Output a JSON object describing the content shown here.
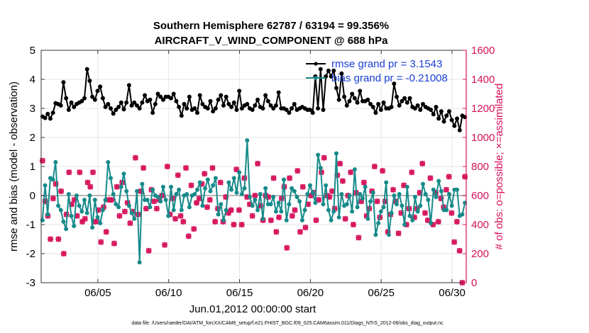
{
  "chart_data": {
    "type": "line",
    "title": "Southern Hemisphere 62787 / 63194 = 99.356%",
    "subtitle": "AIRCRAFT_V_WIND_COMPONENT @ 688 hPa",
    "xlabel": "Jun.01,2012 00:00:00 start",
    "ylabel": "rmse and bias (model - observation)",
    "ylabel_right": "# of obs: o=possible; ×=assimilated",
    "footnote": "data file: /Users/raeder/DAI/ATM_forcXX/CAM6_setup/f.e21.FHIST_BGC.f09_025.CAM6assim.011/Diags_NTrS_2012-06/obs_diag_output.nc",
    "xlim": [
      1,
      31
    ],
    "ylim": [
      -3,
      5
    ],
    "ylim_right": [
      0,
      1600
    ],
    "xticks": [
      5,
      10,
      15,
      20,
      25,
      30
    ],
    "xtick_labels": [
      "06/05",
      "06/10",
      "06/15",
      "06/20",
      "06/25",
      "06/30"
    ],
    "yticks": [
      -3,
      -2,
      -1,
      0,
      1,
      2,
      3,
      4,
      5
    ],
    "ytick_labels": [
      "-3",
      "-2",
      "-1",
      "0",
      "1",
      "2",
      "3",
      "4",
      "5"
    ],
    "yticks_right": [
      0,
      200,
      400,
      600,
      800,
      1000,
      1200,
      1400,
      1600
    ],
    "ytick_labels_right": [
      "0",
      "200",
      "400",
      "600",
      "800",
      "1000",
      "1200",
      "1400",
      "1600"
    ],
    "grid": true,
    "legend_position": "top-right",
    "series": [
      {
        "name": "rmse",
        "legend": "rmse grand pr = 3.1543",
        "color": "#000000",
        "values": [
          2.72,
          2.67,
          2.81,
          2.65,
          2.85,
          3.18,
          3.15,
          3.1,
          3.9,
          3.35,
          2.95,
          3.2,
          3.05,
          3.15,
          3.2,
          3.25,
          3.35,
          4.35,
          3.95,
          3.4,
          3.3,
          3.6,
          3.75,
          3.35,
          3.05,
          3.15,
          3.0,
          2.82,
          2.95,
          3.05,
          3.2,
          2.97,
          3.2,
          3.8,
          3.1,
          3.2,
          3.1,
          3.0,
          3.2,
          3.45,
          3.25,
          3.3,
          2.85,
          3.15,
          3.5,
          3.4,
          3.3,
          3.4,
          3.4,
          3.35,
          3.5,
          3.25,
          3.05,
          2.75,
          3.15,
          3.0,
          3.4,
          2.95,
          3.0,
          2.85,
          3.45,
          3.15,
          3.05,
          3.0,
          3.25,
          2.9,
          3.0,
          3.3,
          3.45,
          3.1,
          3.4,
          3.15,
          3.05,
          3.2,
          2.95,
          3.6,
          3.0,
          3.1,
          3.15,
          3.0,
          2.95,
          3.1,
          3.3,
          3.05,
          3.0,
          3.45,
          3.25,
          3.1,
          3.0,
          3.1,
          3.55,
          3.0,
          3.0,
          2.95,
          2.85,
          3.0,
          3.15,
          2.95,
          3.0,
          3.05,
          3.0,
          2.95,
          2.95,
          2.85,
          4.1,
          3.0,
          4.35,
          2.95,
          4.1,
          4.3,
          4.1,
          4.3,
          3.7,
          3.3,
          4.2,
          3.4,
          3.1,
          3.25,
          3.5,
          3.35,
          3.2,
          3.6,
          3.25,
          3.25,
          3.3,
          3.15,
          3.05,
          2.85,
          3.15,
          2.95,
          3.2,
          3.0,
          3.0,
          3.05,
          3.85,
          3.4,
          3.1,
          3.25,
          3.35,
          3.2,
          3.35,
          3.05,
          3.0,
          3.1,
          2.95,
          3.15,
          3.05,
          3.0,
          2.95,
          2.8,
          3.05,
          2.65,
          2.9,
          2.55,
          2.75,
          2.9,
          2.6,
          2.4,
          2.65,
          2.25,
          2.75,
          2.7
        ]
      },
      {
        "name": "bias",
        "legend": "bias grand pr = -0.21008",
        "color": "#178a8a",
        "values": [
          -0.85,
          0.35,
          -0.65,
          0.6,
          0.55,
          1.15,
          -0.35,
          -0.5,
          -0.9,
          -1.15,
          0.05,
          -0.7,
          -1.05,
          0.0,
          -0.35,
          -0.55,
          -0.15,
          -0.6,
          0.0,
          -1.1,
          -0.15,
          -0.75,
          -0.95,
          -0.5,
          -0.15,
          1.15,
          0.6,
          0.05,
          -0.3,
          -0.4,
          0.3,
          0.75,
          0.15,
          -0.35,
          -0.6,
          -0.8,
          0.15,
          -2.3,
          0.4,
          -0.15,
          -0.15,
          -0.4,
          0.2,
          0.0,
          -0.05,
          -0.2,
          0.3,
          -0.15,
          -0.7,
          0.3,
          -0.5,
          0.05,
          0.2,
          -0.5,
          0.0,
          0.05,
          -0.4,
          0.0,
          0.05,
          0.2,
          0.45,
          -0.35,
          0.25,
          0.55,
          0.15,
          0.35,
          0.6,
          -0.65,
          -0.3,
          -0.85,
          -0.5,
          0.45,
          0.2,
          0.6,
          0.1,
          0.8,
          0.05,
          0.25,
          1.9,
          -0.05,
          -0.35,
          -0.15,
          -0.5,
          0.05,
          -0.8,
          0.25,
          -0.3,
          -0.3,
          -0.05,
          -0.55,
          -0.25,
          -0.55,
          0.55,
          -0.85,
          -0.3,
          0.25,
          0.15,
          -0.05,
          -0.2,
          -0.85,
          -0.5,
          0.05,
          0.35,
          0.1,
          -0.25,
          1.4,
          0.95,
          -0.3,
          0.35,
          -0.5,
          -0.85,
          -0.55,
          1.45,
          -0.75,
          0.05,
          -0.35,
          -0.3,
          0.0,
          -0.55,
          0.9,
          -0.4,
          0.05,
          -0.1,
          0.3,
          -0.8,
          -0.2,
          0.1,
          -1.35,
          -0.95,
          -0.55,
          -0.4,
          0.45,
          -1.35,
          -0.6,
          0.0,
          -0.3,
          0.05,
          -0.35,
          -1.0,
          0.3,
          -0.7,
          -0.85,
          -0.05,
          -0.55,
          -0.35,
          0.4,
          0.05,
          -0.15,
          -0.95,
          0.2,
          -0.05,
          0.5,
          0.15,
          -0.5,
          -0.5,
          0.05,
          -0.35,
          0.2,
          0.2,
          -0.7,
          -0.65,
          -0.25
        ]
      },
      {
        "name": "obs_possible",
        "marker": "o",
        "color": "#d6115a",
        "values": [
          840,
          560,
          460,
          300,
          580,
          680,
          300,
          630,
          200,
          470,
          760,
          540,
          570,
          460,
          760,
          420,
          440,
          690,
          660,
          760,
          420,
          500,
          280,
          520,
          350,
          570,
          570,
          270,
          660,
          460,
          690,
          490,
          550,
          410,
          490,
          860,
          470,
          630,
          790,
          510,
          220,
          640,
          560,
          510,
          570,
          600,
          260,
          800,
          470,
          580,
          440,
          740,
          460,
          420,
          790,
          320,
          670,
          370,
          550,
          580,
          680,
          750,
          520,
          570,
          790,
          420,
          510,
          690,
          420,
          590,
          480,
          500,
          400,
          780,
          500,
          400,
          720,
          590,
          540,
          460,
          600,
          820,
          530,
          430,
          600,
          590,
          430,
          720,
          350,
          450,
          580,
          660,
          240,
          720,
          460,
          500,
          770,
          350,
          660,
          380,
          540,
          600,
          620,
          430,
          570,
          760,
          860,
          600,
          590,
          630,
          510,
          740,
          820,
          700,
          440,
          600,
          760,
          400,
          620,
          310,
          560,
          690,
          460,
          510,
          630,
          800,
          560,
          450,
          770,
          560,
          350,
          470,
          640,
          560,
          340,
          480,
          670,
          400,
          510,
          760,
          450,
          510,
          620,
          820,
          480,
          430,
          720,
          400,
          620,
          420,
          580,
          520,
          640,
          730,
          480,
          280,
          420,
          220,
          0,
          730
        ]
      },
      {
        "name": "obs_assimilated",
        "marker": "x",
        "color": "#d6115a",
        "values": [
          840,
          560,
          460,
          300,
          580,
          680,
          300,
          630,
          200,
          470,
          760,
          540,
          570,
          460,
          760,
          420,
          440,
          690,
          660,
          760,
          420,
          500,
          280,
          520,
          350,
          570,
          570,
          270,
          660,
          460,
          690,
          490,
          550,
          410,
          490,
          860,
          470,
          630,
          790,
          510,
          220,
          640,
          560,
          510,
          570,
          600,
          260,
          800,
          470,
          580,
          440,
          740,
          460,
          420,
          790,
          320,
          670,
          370,
          550,
          580,
          680,
          750,
          520,
          570,
          790,
          420,
          510,
          690,
          420,
          590,
          480,
          500,
          400,
          780,
          500,
          400,
          720,
          590,
          540,
          460,
          600,
          820,
          530,
          430,
          600,
          590,
          430,
          720,
          350,
          450,
          580,
          660,
          240,
          720,
          460,
          500,
          770,
          350,
          660,
          380,
          540,
          600,
          620,
          430,
          570,
          760,
          860,
          600,
          590,
          630,
          510,
          740,
          820,
          700,
          440,
          600,
          760,
          400,
          620,
          310,
          560,
          690,
          460,
          510,
          630,
          800,
          560,
          450,
          770,
          560,
          350,
          470,
          640,
          560,
          340,
          480,
          670,
          400,
          510,
          760,
          450,
          510,
          620,
          820,
          480,
          430,
          720,
          400,
          620,
          420,
          580,
          520,
          640,
          730,
          480,
          280,
          420,
          220,
          0,
          730
        ]
      }
    ]
  }
}
